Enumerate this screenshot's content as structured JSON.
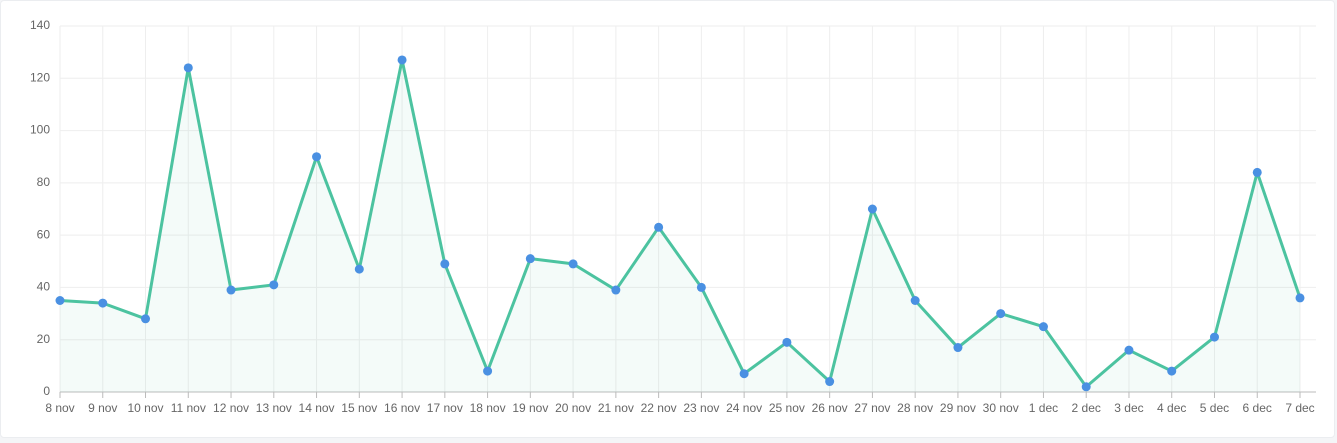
{
  "chart_data": {
    "type": "line",
    "categories": [
      "8 nov",
      "9 nov",
      "10 nov",
      "11 nov",
      "12 nov",
      "13 nov",
      "14 nov",
      "15 nov",
      "16 nov",
      "17 nov",
      "18 nov",
      "19 nov",
      "20 nov",
      "21 nov",
      "22 nov",
      "23 nov",
      "24 nov",
      "25 nov",
      "26 nov",
      "27 nov",
      "28 nov",
      "29 nov",
      "30 nov",
      "1 dec",
      "2 dec",
      "3 dec",
      "4 dec",
      "5 dec",
      "6 dec",
      "7 dec"
    ],
    "values": [
      35,
      34,
      28,
      124,
      39,
      41,
      90,
      47,
      127,
      49,
      8,
      51,
      49,
      39,
      63,
      40,
      7,
      19,
      4,
      70,
      35,
      17,
      30,
      25,
      2,
      16,
      8,
      21,
      84,
      36
    ],
    "color": "#4cc3a0",
    "point_color": "#4a90e2",
    "ylim": [
      0,
      140
    ],
    "yticks": [
      0,
      20,
      40,
      60,
      80,
      100,
      120,
      140
    ],
    "grid": true
  }
}
